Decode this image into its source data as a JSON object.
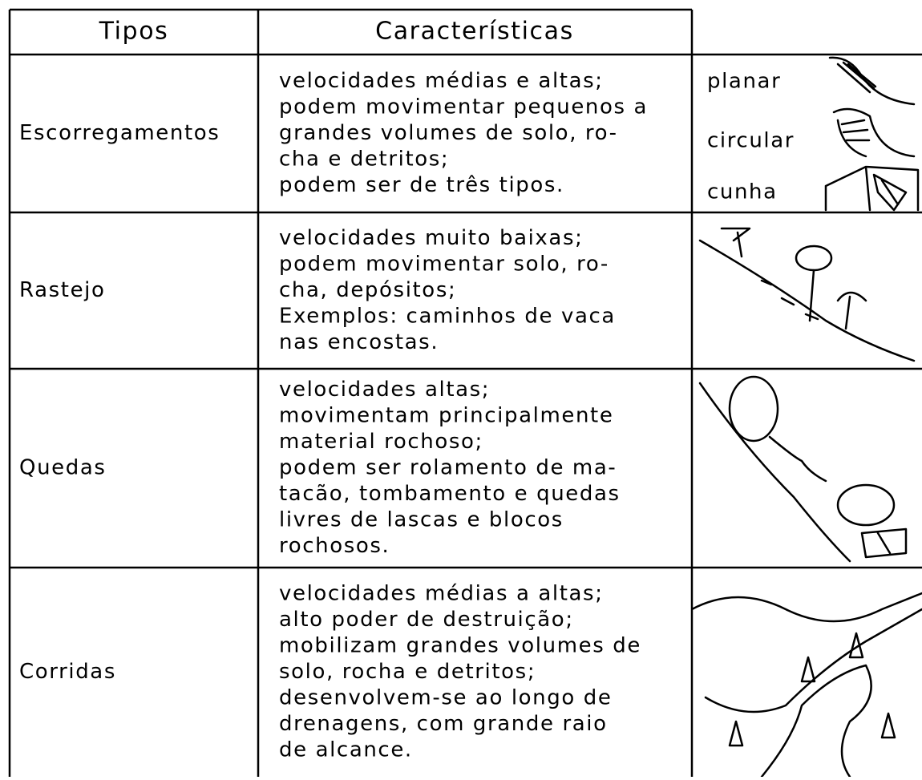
{
  "header": {
    "columns": [
      "Tipos",
      "Características"
    ]
  },
  "rows": [
    {
      "tipo": "Escorregamentos",
      "caracteristicas": [
        "velocidades médias e altas;",
        "podem movimentar pequenos a",
        "grandes volumes de solo, ro-",
        "cha e detritos;",
        "podem ser de três tipos."
      ],
      "ilustracao": [
        "planar",
        "circular",
        "cunha"
      ]
    },
    {
      "tipo": "Rastejo",
      "caracteristicas": [
        "velocidades muito baixas;",
        "podem movimentar solo, ro-",
        "cha, depósitos;",
        "Exemplos: caminhos de vaca",
        "nas encostas."
      ]
    },
    {
      "tipo": "Quedas",
      "caracteristicas": [
        "velocidades altas;",
        "movimentam principalmente",
        "material rochoso;",
        "podem ser rolamento de ma-",
        "tacão, tombamento e quedas",
        "livres de lascas e blocos",
        "rochosos."
      ]
    },
    {
      "tipo": "Corridas",
      "caracteristicas": [
        "velocidades médias a altas;",
        "alto poder de destruição;",
        "mobilizam grandes volumes de",
        "solo, rocha e detritos;",
        "desenvolvem-se ao longo de",
        "drenagens, com grande raio",
        "de alcance."
      ]
    }
  ]
}
